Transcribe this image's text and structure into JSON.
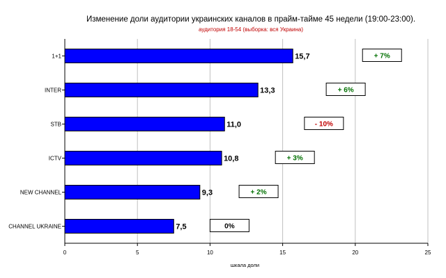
{
  "chart_data": {
    "type": "bar",
    "orientation": "horizontal",
    "title": "Изменение доли аудитории украинских каналов в прайм-тайме 45 недели (19:00-23:00).",
    "subtitle": "аудитория 18-54 (выборка: вся Украина)",
    "xlabel": "шкала доли",
    "ylabel": "",
    "xlim": [
      0,
      25
    ],
    "xticks": [
      0,
      5,
      10,
      15,
      20,
      25
    ],
    "grid": "vertical",
    "categories": [
      "1+1",
      "INTER",
      "STB",
      "ICTV",
      "NEW CHANNEL",
      "CHANNEL UKRAINE"
    ],
    "values": [
      15.7,
      13.3,
      11.0,
      10.8,
      9.3,
      7.5
    ],
    "value_labels": [
      "15,7",
      "13,3",
      "11,0",
      "10,8",
      "9,3",
      "7,5"
    ],
    "change_labels": [
      "+ 7%",
      "+ 6%",
      "- 10%",
      "+ 3%",
      "+ 2%",
      "0%"
    ],
    "change_positions": [
      20.5,
      18.0,
      16.5,
      14.5,
      12.0,
      10.0
    ],
    "colors": {
      "bar": "#0000ff",
      "positive": "#007000",
      "negative": "#c00000",
      "neutral": "#000000",
      "grid": "#c0c0c0"
    }
  }
}
